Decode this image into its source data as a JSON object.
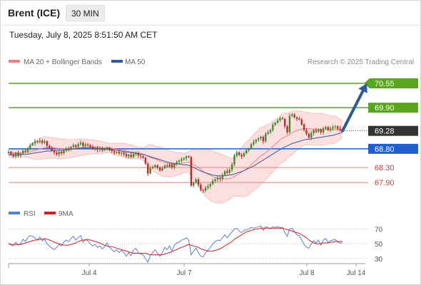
{
  "header": {
    "instrument": "Brent (ICE)",
    "interval": "30 MIN",
    "timestamp": "Tuesday, July 8, 2025 8:51:50 AM CET"
  },
  "legend": {
    "items": [
      {
        "label": "MA 20 + Bollinger Bands",
        "color": "#f08080"
      },
      {
        "label": "MA 50",
        "color": "#2e5a9c"
      }
    ],
    "credit": "Research © 2025 Trading Central"
  },
  "chart_data": [
    {
      "type": "candlestick",
      "title": "",
      "ylim": [
        67.35,
        70.95
      ],
      "x_labels": [
        "Jul 4",
        "Jul 7",
        "Jul 8",
        "Jul 14"
      ],
      "levels": [
        {
          "value": 70.55,
          "label": "70.55",
          "color": "#5aa51e",
          "style": "solid",
          "kind": "target"
        },
        {
          "value": 69.9,
          "label": "69.90",
          "color": "#5aa51e",
          "style": "solid",
          "kind": "resistance"
        },
        {
          "value": 69.28,
          "label": "69.28",
          "color": "#333333",
          "style": "dotted",
          "kind": "last-price"
        },
        {
          "value": 68.8,
          "label": "68.80",
          "color": "#1f5fd0",
          "style": "solid",
          "kind": "pivot"
        },
        {
          "value": 68.3,
          "label": "68.30",
          "color": "#e88080",
          "style": "solid",
          "kind": "support"
        },
        {
          "value": 67.9,
          "label": "67.90",
          "color": "#e88080",
          "style": "solid",
          "kind": "support"
        }
      ],
      "close": [
        68.72,
        68.65,
        68.6,
        68.7,
        68.62,
        68.68,
        68.75,
        68.72,
        68.8,
        68.9,
        68.95,
        69.0,
        68.98,
        69.02,
        68.96,
        69.0,
        68.88,
        68.82,
        68.76,
        68.7,
        68.65,
        68.72,
        68.68,
        68.75,
        68.8,
        68.78,
        68.85,
        68.9,
        68.86,
        68.92,
        68.96,
        68.88,
        68.92,
        68.9,
        68.85,
        68.8,
        68.82,
        68.78,
        68.8,
        68.76,
        68.79,
        68.83,
        68.77,
        68.74,
        68.7,
        68.72,
        68.68,
        68.7,
        68.66,
        68.6,
        68.64,
        68.58,
        68.66,
        68.68,
        68.62,
        68.6,
        68.56,
        68.4,
        68.14,
        68.28,
        68.32,
        68.36,
        68.3,
        68.22,
        68.28,
        68.35,
        68.32,
        68.38,
        68.3,
        68.4,
        68.45,
        68.48,
        68.52,
        68.55,
        68.6,
        68.58,
        67.82,
        67.9,
        67.98,
        67.84,
        67.7,
        67.68,
        67.76,
        67.8,
        67.86,
        67.94,
        67.98,
        68.02,
        68.0,
        68.1,
        68.2,
        68.16,
        68.24,
        68.38,
        68.62,
        68.7,
        68.64,
        68.6,
        68.68,
        68.76,
        68.8,
        68.92,
        68.98,
        69.04,
        69.08,
        69.12,
        69.0,
        69.2,
        69.24,
        69.3,
        69.44,
        69.5,
        69.56,
        69.62,
        69.6,
        69.4,
        69.24,
        69.68,
        69.72,
        69.64,
        69.6,
        69.58,
        69.45,
        69.3,
        69.2,
        69.1,
        69.22,
        69.3,
        69.26,
        69.32,
        69.24,
        69.34,
        69.38,
        69.3,
        69.34,
        69.38,
        69.4,
        69.34,
        69.3,
        69.28
      ],
      "ma20": [
        68.7,
        68.69,
        68.69,
        68.69,
        68.68,
        68.68,
        68.69,
        68.69,
        68.7,
        68.72,
        68.74,
        68.76,
        68.78,
        68.8,
        68.81,
        68.83,
        68.83,
        68.83,
        68.83,
        68.82,
        68.81,
        68.81,
        68.8,
        68.8,
        68.8,
        68.8,
        68.8,
        68.81,
        68.82,
        68.83,
        68.84,
        68.84,
        68.85,
        68.85,
        68.85,
        68.85,
        68.85,
        68.84,
        68.84,
        68.83,
        68.83,
        68.83,
        68.82,
        68.81,
        68.8,
        68.79,
        68.78,
        68.77,
        68.76,
        68.74,
        68.73,
        68.72,
        68.71,
        68.7,
        68.69,
        68.68,
        68.66,
        68.64,
        68.6,
        68.57,
        68.55,
        68.53,
        68.5,
        68.47,
        68.45,
        68.43,
        68.42,
        68.4,
        68.39,
        68.39,
        68.39,
        68.4,
        68.41,
        68.42,
        68.44,
        68.45,
        68.41,
        68.37,
        68.34,
        68.3,
        68.25,
        68.2,
        68.16,
        68.12,
        68.09,
        68.06,
        68.04,
        68.02,
        68.01,
        68.0,
        68.0,
        68.0,
        68.0,
        68.02,
        68.06,
        68.1,
        68.14,
        68.18,
        68.22,
        68.26,
        68.31,
        68.37,
        68.43,
        68.49,
        68.55,
        68.61,
        68.65,
        68.7,
        68.75,
        68.8,
        68.86,
        68.92,
        68.98,
        69.04,
        69.09,
        69.12,
        69.15,
        69.19,
        69.23,
        69.26,
        69.29,
        69.31,
        69.33,
        69.34,
        69.34,
        69.34,
        69.33,
        69.33,
        69.32,
        69.32,
        69.32,
        69.32,
        69.32,
        69.31,
        69.31,
        69.31,
        69.32,
        69.32,
        69.32,
        69.32
      ],
      "ma50": [
        68.64,
        68.64,
        68.64,
        68.64,
        68.64,
        68.64,
        68.65,
        68.65,
        68.66,
        68.67,
        68.68,
        68.69,
        68.7,
        68.71,
        68.72,
        68.73,
        68.74,
        68.74,
        68.75,
        68.75,
        68.75,
        68.76,
        68.76,
        68.77,
        68.77,
        68.78,
        68.79,
        68.79,
        68.8,
        68.81,
        68.81,
        68.82,
        68.82,
        68.82,
        68.82,
        68.82,
        68.82,
        68.81,
        68.81,
        68.8,
        68.8,
        68.79,
        68.78,
        68.77,
        68.77,
        68.76,
        68.75,
        68.74,
        68.73,
        68.72,
        68.71,
        68.7,
        68.69,
        68.68,
        68.67,
        68.66,
        68.65,
        68.63,
        68.61,
        68.59,
        68.57,
        68.55,
        68.53,
        68.51,
        68.49,
        68.47,
        68.45,
        68.43,
        68.42,
        68.41,
        68.4,
        68.39,
        68.38,
        68.37,
        68.37,
        68.36,
        68.33,
        68.3,
        68.27,
        68.24,
        68.21,
        68.18,
        68.16,
        68.14,
        68.12,
        68.1,
        68.09,
        68.08,
        68.08,
        68.08,
        68.08,
        68.09,
        68.1,
        68.11,
        68.13,
        68.15,
        68.17,
        68.19,
        68.22,
        68.25,
        68.28,
        68.31,
        68.34,
        68.38,
        68.42,
        68.46,
        68.5,
        68.54,
        68.58,
        68.62,
        68.66,
        68.7,
        68.74,
        68.78,
        68.82,
        68.85,
        68.88,
        68.91,
        68.94,
        68.96,
        68.98,
        69.0,
        69.02,
        69.04,
        69.05,
        69.06,
        69.07,
        69.08,
        69.09,
        69.1,
        69.11,
        69.12,
        69.13,
        69.14,
        69.15,
        69.16,
        69.18,
        69.2,
        69.22,
        69.24
      ],
      "forecast_arrow": {
        "from": 69.28,
        "to": 70.55
      }
    },
    {
      "type": "line",
      "title": "",
      "series_names": [
        "RSI",
        "9MA"
      ],
      "colors": [
        "#5b7fd6",
        "#d42020"
      ],
      "y_ticks": [
        70,
        50,
        30
      ],
      "ylim": [
        25,
        78
      ],
      "rsi": [
        51,
        48,
        47,
        52,
        48,
        50,
        56,
        53,
        58,
        61,
        60,
        58,
        55,
        59,
        54,
        56,
        50,
        47,
        44,
        42,
        45,
        49,
        47,
        52,
        55,
        53,
        57,
        60,
        55,
        58,
        61,
        52,
        56,
        54,
        50,
        47,
        49,
        45,
        47,
        43,
        46,
        51,
        45,
        42,
        39,
        42,
        38,
        41,
        38,
        33,
        38,
        34,
        41,
        44,
        38,
        36,
        35,
        30,
        25,
        34,
        38,
        42,
        37,
        33,
        38,
        45,
        42,
        47,
        40,
        48,
        51,
        52,
        55,
        56,
        58,
        55,
        35,
        40,
        44,
        38,
        33,
        32,
        38,
        41,
        45,
        50,
        53,
        55,
        54,
        58,
        62,
        58,
        62,
        66,
        70,
        71,
        67,
        65,
        68,
        69,
        70,
        72,
        71,
        72,
        73,
        74,
        68,
        73,
        72,
        70,
        73,
        72,
        73,
        72,
        72,
        65,
        60,
        70,
        71,
        66,
        62,
        61,
        55,
        49,
        45,
        44,
        50,
        54,
        51,
        55,
        48,
        55,
        57,
        52,
        54,
        55,
        56,
        52,
        51,
        51
      ],
      "ma9": [
        50,
        49,
        49,
        49,
        49,
        49,
        50,
        51,
        52,
        53,
        54,
        55,
        55,
        56,
        56,
        57,
        56,
        55,
        54,
        52,
        51,
        50,
        49,
        48,
        48,
        48,
        49,
        50,
        51,
        53,
        54,
        55,
        55,
        56,
        55,
        54,
        53,
        52,
        51,
        49,
        48,
        47,
        46,
        46,
        45,
        44,
        43,
        42,
        41,
        40,
        39,
        38,
        37,
        37,
        37,
        37,
        37,
        37,
        36,
        35,
        35,
        35,
        35,
        35,
        35,
        36,
        37,
        38,
        39,
        41,
        42,
        44,
        45,
        46,
        48,
        49,
        48,
        47,
        46,
        45,
        43,
        42,
        41,
        40,
        40,
        40,
        41,
        42,
        43,
        45,
        47,
        49,
        51,
        53,
        56,
        58,
        60,
        62,
        64,
        66,
        67,
        68,
        69,
        70,
        70,
        71,
        71,
        71,
        71,
        71,
        71,
        71,
        71,
        71,
        71,
        70,
        69,
        68,
        67,
        66,
        65,
        64,
        62,
        60,
        58,
        55,
        53,
        51,
        50,
        50,
        50,
        51,
        51,
        51,
        52,
        52,
        53,
        53,
        53,
        53
      ]
    }
  ]
}
